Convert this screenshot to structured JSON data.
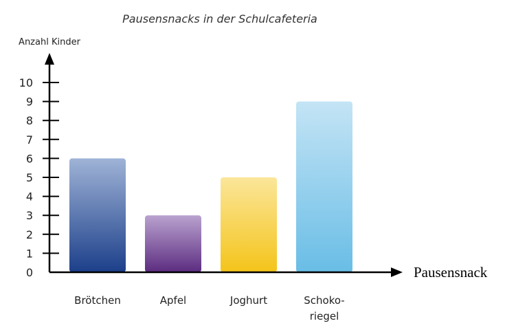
{
  "chart_data": {
    "type": "bar",
    "title": "Pausensnacks in der Schulcafeteria",
    "ylabel": "Anzahl Kinder",
    "xlabel": "Pausensnack",
    "categories": [
      [
        "Brötchen"
      ],
      [
        "Apfel"
      ],
      [
        "Joghurt"
      ],
      [
        "Schoko-",
        "riegel"
      ]
    ],
    "values": [
      6,
      3,
      5,
      9
    ],
    "ylim": [
      0,
      10
    ],
    "yticks": [
      0,
      1,
      2,
      3,
      4,
      5,
      6,
      7,
      8,
      9,
      10
    ],
    "grid": false,
    "colors": [
      [
        "#9fb3d6",
        "#1c3f8a"
      ],
      [
        "#b9a2cf",
        "#5c2c80"
      ],
      [
        "#fbe69a",
        "#f4c41a"
      ],
      [
        "#c4e4f5",
        "#69bde6"
      ]
    ]
  }
}
